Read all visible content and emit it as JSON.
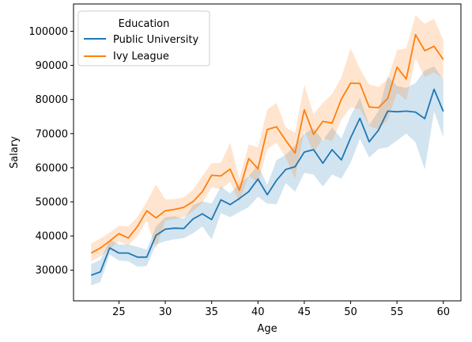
{
  "chart_data": {
    "type": "line",
    "title": "",
    "xlabel": "Age",
    "ylabel": "Salary",
    "xlim": [
      20.1,
      61.9
    ],
    "ylim": [
      21000,
      108000
    ],
    "x_ticks": [
      25,
      30,
      35,
      40,
      45,
      50,
      55,
      60
    ],
    "x_tick_labels": [
      "25",
      "30",
      "35",
      "40",
      "45",
      "50",
      "55",
      "60"
    ],
    "y_ticks": [
      30000,
      40000,
      50000,
      60000,
      70000,
      80000,
      90000,
      100000
    ],
    "y_tick_labels": [
      "30000",
      "40000",
      "50000",
      "60000",
      "70000",
      "80000",
      "90000",
      "100000"
    ],
    "grid": false,
    "legend": {
      "title": "Education",
      "placement": "upper-left"
    },
    "x": [
      22,
      23,
      24,
      25,
      26,
      27,
      28,
      29,
      30,
      31,
      32,
      33,
      34,
      35,
      36,
      37,
      38,
      39,
      40,
      41,
      42,
      43,
      44,
      45,
      46,
      47,
      48,
      49,
      50,
      51,
      52,
      53,
      54,
      55,
      56,
      57,
      58,
      59,
      60
    ],
    "series": [
      {
        "name": "Public University",
        "color": "#1f77b4",
        "values": [
          28500,
          29500,
          36500,
          35000,
          35000,
          33800,
          33800,
          40200,
          42000,
          42300,
          42200,
          45000,
          46500,
          44800,
          50600,
          49200,
          51000,
          53000,
          56700,
          52100,
          56300,
          59500,
          60300,
          64600,
          65300,
          61300,
          65300,
          62300,
          68800,
          74500,
          67600,
          71000,
          76600,
          76400,
          76600,
          76300,
          74400,
          83000,
          76500
        ],
        "band_lower": [
          25500,
          26500,
          34500,
          32800,
          32600,
          31000,
          31200,
          37500,
          38500,
          39000,
          39400,
          40800,
          42800,
          39000,
          46700,
          45500,
          47000,
          48500,
          51500,
          49500,
          49300,
          55500,
          53000,
          58500,
          58000,
          54500,
          58000,
          56800,
          61500,
          68500,
          63000,
          65500,
          66000,
          68000,
          70000,
          67500,
          59500,
          76500,
          69000
        ],
        "band_upper": [
          31800,
          33000,
          39000,
          37500,
          37500,
          36800,
          36000,
          42800,
          45500,
          45800,
          45000,
          49000,
          50200,
          49500,
          54500,
          52500,
          55300,
          57500,
          60800,
          55000,
          62200,
          63800,
          66500,
          70000,
          71500,
          68000,
          71800,
          68600,
          75200,
          80500,
          72500,
          76600,
          86800,
          84000,
          83400,
          84800,
          88500,
          89700,
          85800
        ]
      },
      {
        "name": "Ivy League",
        "color": "#ff7f0e",
        "values": [
          35000,
          36500,
          38500,
          40700,
          39400,
          42800,
          47400,
          45300,
          47400,
          47800,
          48400,
          50100,
          53000,
          57800,
          57600,
          59600,
          53400,
          62700,
          59700,
          71200,
          72000,
          68000,
          64300,
          77000,
          69800,
          73600,
          73100,
          80100,
          84800,
          84700,
          77800,
          77600,
          80300,
          89500,
          86000,
          99000,
          94300,
          95600,
          91700
        ],
        "band_lower": [
          32500,
          34000,
          36200,
          38500,
          37200,
          40000,
          44500,
          36200,
          44500,
          45000,
          45500,
          47300,
          49800,
          54300,
          53700,
          55800,
          50000,
          57700,
          55500,
          65500,
          67300,
          63000,
          56800,
          70800,
          64500,
          68600,
          67800,
          74000,
          77700,
          77200,
          72300,
          71200,
          74000,
          82000,
          79800,
          92000,
          86600,
          88000,
          86000
        ],
        "band_upper": [
          37800,
          39200,
          41000,
          43000,
          42800,
          45600,
          50000,
          55100,
          50700,
          50800,
          51300,
          53600,
          57600,
          61400,
          61400,
          67400,
          56800,
          66800,
          66000,
          77000,
          79000,
          71800,
          70300,
          84300,
          75700,
          79000,
          81600,
          86500,
          95000,
          89000,
          84400,
          83700,
          85900,
          94500,
          95000,
          104700,
          102200,
          103700,
          97500
        ]
      }
    ]
  }
}
